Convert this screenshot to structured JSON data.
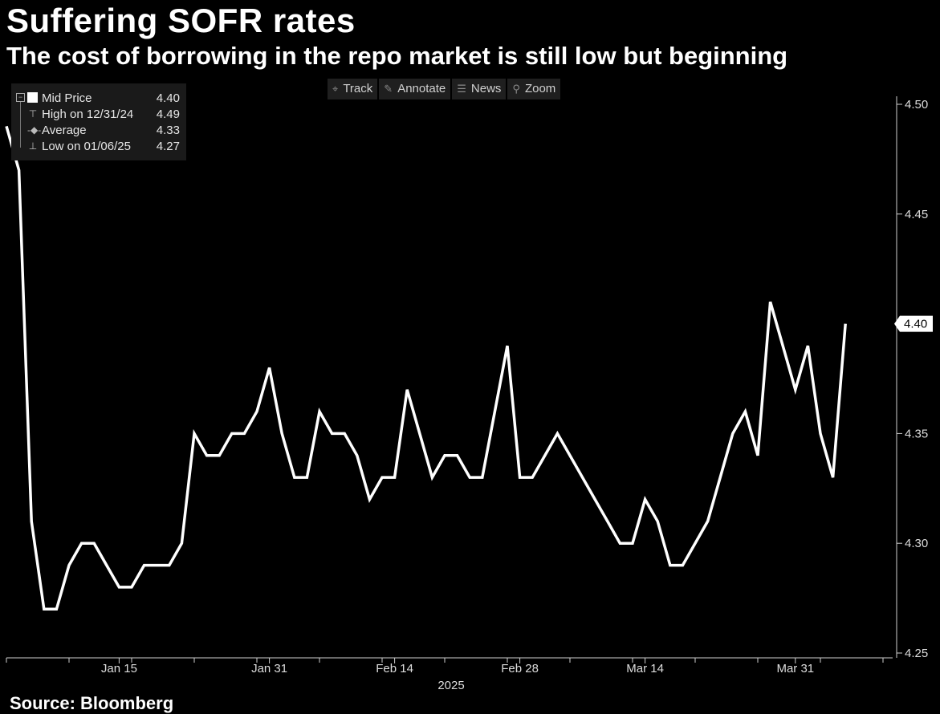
{
  "title": "Suffering SOFR rates",
  "subtitle": "The cost of borrowing in the repo market is still low but beginning",
  "source": "Source: Bloomberg",
  "toolbar": {
    "track": "Track",
    "track_icon": "crosshair-icon",
    "annotate": "Annotate",
    "annotate_icon": "pencil-icon",
    "news": "News",
    "news_icon": "news-icon",
    "zoom": "Zoom",
    "zoom_icon": "magnifier-icon"
  },
  "legend": {
    "mid_label": "Mid Price",
    "mid_value": "4.40",
    "high_label": "High on 12/31/24",
    "high_value": "4.49",
    "avg_label": "Average",
    "avg_value": "4.33",
    "low_label": "Low on 01/06/25",
    "low_value": "4.27"
  },
  "chart_data": {
    "type": "line",
    "title": "Suffering SOFR rates",
    "xlabel": "2025",
    "ylabel": "",
    "ylim": [
      4.25,
      4.5
    ],
    "yticks": [
      "4.25",
      "4.30",
      "4.35",
      "4.40",
      "4.45",
      "4.50"
    ],
    "last_value_label": "4.40",
    "xticks": [
      {
        "label": "Jan 15",
        "index": 9
      },
      {
        "label": "Jan 31",
        "index": 21
      },
      {
        "label": "Feb 14",
        "index": 31
      },
      {
        "label": "Feb 28",
        "index": 41
      },
      {
        "label": "Mar 14",
        "index": 51
      },
      {
        "label": "Mar 31",
        "index": 63
      }
    ],
    "x_count": 72,
    "series": [
      {
        "name": "Mid Price",
        "color": "#ffffff",
        "values": [
          4.49,
          4.47,
          4.31,
          4.27,
          4.27,
          4.29,
          4.3,
          4.3,
          4.29,
          4.28,
          4.28,
          4.29,
          4.29,
          4.29,
          4.3,
          4.35,
          4.34,
          4.34,
          4.35,
          4.35,
          4.36,
          4.38,
          4.35,
          4.33,
          4.33,
          4.36,
          4.35,
          4.35,
          4.34,
          4.32,
          4.33,
          4.33,
          4.37,
          4.35,
          4.33,
          4.34,
          4.34,
          4.33,
          4.33,
          4.36,
          4.39,
          4.33,
          4.33,
          4.34,
          4.35,
          4.34,
          4.33,
          4.32,
          4.31,
          4.3,
          4.3,
          4.32,
          4.31,
          4.29,
          4.29,
          4.3,
          4.31,
          4.33,
          4.35,
          4.36,
          4.34,
          4.41,
          4.39,
          4.37,
          4.39,
          4.35,
          4.33,
          4.4
        ]
      }
    ]
  }
}
